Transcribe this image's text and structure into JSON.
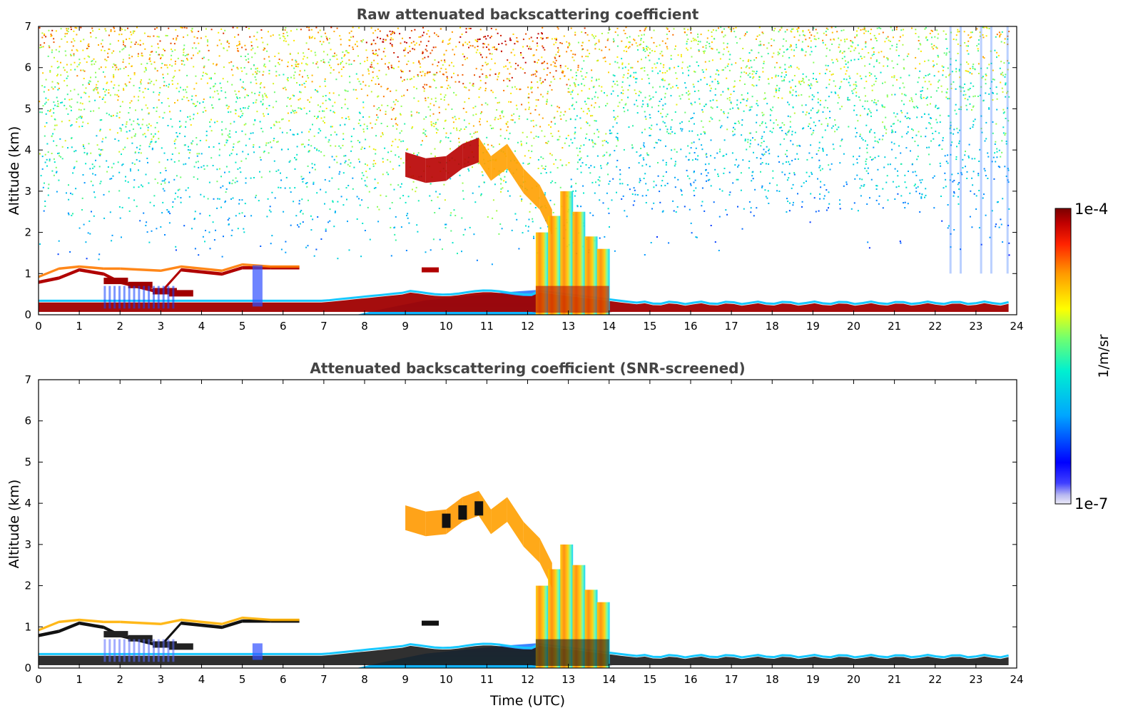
{
  "chart_data": [
    {
      "type": "heatmap",
      "title": "Raw attenuated backscattering coefficient",
      "xlabel": "",
      "ylabel": "Altitude (km)",
      "xlim": [
        0,
        24
      ],
      "ylim": [
        0,
        7
      ],
      "xticks": [
        "0",
        "1",
        "2",
        "3",
        "4",
        "5",
        "6",
        "7",
        "8",
        "9",
        "10",
        "11",
        "12",
        "13",
        "14",
        "15",
        "16",
        "17",
        "18",
        "19",
        "20",
        "21",
        "22",
        "23",
        "24"
      ],
      "yticks": [
        "0",
        "1",
        "2",
        "3",
        "4",
        "5",
        "6",
        "7"
      ],
      "features": [
        {
          "kind": "boundary-layer",
          "t_start": 0,
          "t_end": 23.8,
          "alt_km": [
            0.05,
            0.35
          ],
          "level": "high"
        },
        {
          "kind": "low-cloud-layer",
          "t_start": 0,
          "t_end": 6.4,
          "alt_km": [
            0.7,
            1.25
          ],
          "level": "high"
        },
        {
          "kind": "mid-cloud",
          "t_start": 9.0,
          "t_end": 11.5,
          "alt_km": [
            3.0,
            4.2
          ],
          "level": "high"
        },
        {
          "kind": "precipitation-fall-streaks",
          "t_start": 12.2,
          "t_end": 14.0,
          "alt_km": [
            0,
            3.0
          ],
          "level": "medium-high"
        },
        {
          "kind": "background-noise",
          "t_start": 0,
          "t_end": 24,
          "alt_km": [
            1.5,
            7
          ],
          "level": "noisy"
        }
      ]
    },
    {
      "type": "heatmap",
      "title": "Attenuated backscattering coefficient (SNR-screened)",
      "xlabel": "Time (UTC)",
      "ylabel": "Altitude (km)",
      "xlim": [
        0,
        24
      ],
      "ylim": [
        0,
        7
      ],
      "xticks": [
        "0",
        "1",
        "2",
        "3",
        "4",
        "5",
        "6",
        "7",
        "8",
        "9",
        "10",
        "11",
        "12",
        "13",
        "14",
        "15",
        "16",
        "17",
        "18",
        "19",
        "20",
        "21",
        "22",
        "23",
        "24"
      ],
      "yticks": [
        "0",
        "1",
        "2",
        "3",
        "4",
        "5",
        "6",
        "7"
      ],
      "features": [
        {
          "kind": "boundary-layer",
          "t_start": 0,
          "t_end": 23.8,
          "alt_km": [
            0.05,
            0.35
          ],
          "level": "high"
        },
        {
          "kind": "low-cloud-layer",
          "t_start": 0,
          "t_end": 6.4,
          "alt_km": [
            0.7,
            1.25
          ],
          "level": "high"
        },
        {
          "kind": "mid-cloud",
          "t_start": 9.0,
          "t_end": 11.5,
          "alt_km": [
            3.0,
            4.2
          ],
          "level": "high"
        },
        {
          "kind": "precipitation-fall-streaks",
          "t_start": 12.2,
          "t_end": 14.0,
          "alt_km": [
            0,
            3.0
          ],
          "level": "medium-high"
        }
      ]
    }
  ],
  "colorbar": {
    "label": "1/m/sr",
    "max_label": "1e-4",
    "min_label": "1e-7",
    "scale": "log",
    "colormap": "jet",
    "colors": [
      "#e8e8f8",
      "#0000ff",
      "#00aaff",
      "#00ffcc",
      "#ffff00",
      "#ff8800",
      "#cc0000",
      "#7a0000"
    ]
  }
}
